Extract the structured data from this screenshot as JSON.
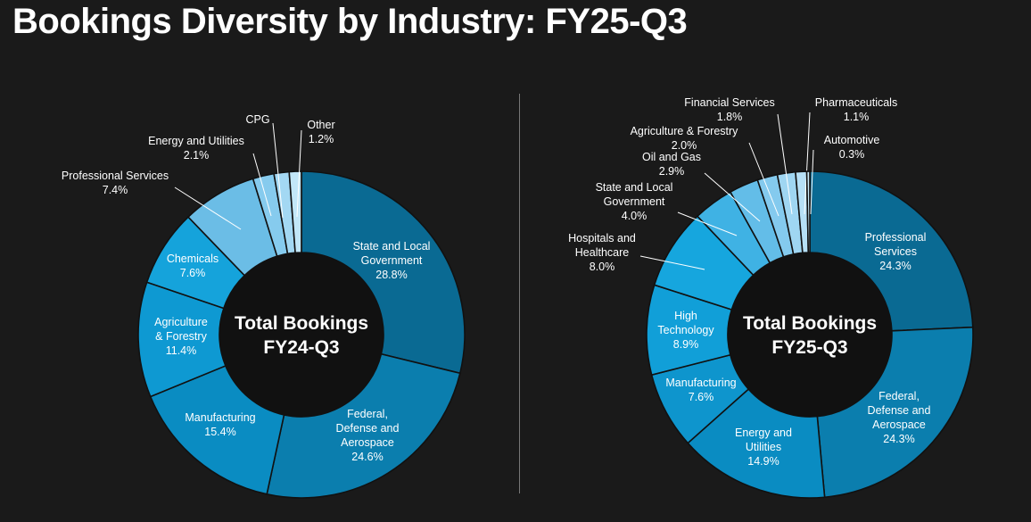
{
  "title": "Bookings Diversity by Industry: FY25-Q3",
  "colors": {
    "background": "#1a1a1a",
    "slice_palette": [
      "#0a6a93",
      "#0b7eae",
      "#0a8cc2",
      "#0e99d2",
      "#1aa6dd",
      "#3cb2e4",
      "#6bc0e8",
      "#8dd0f0",
      "#a9dcf4",
      "#c2e7f8"
    ],
    "text": "#ffffff"
  },
  "chart_data": [
    {
      "type": "pie",
      "center_label": [
        "Total Bookings",
        "FY24-Q3"
      ],
      "slices": [
        {
          "label": "State and Local Government",
          "value": 28.8,
          "display": "28.8%",
          "color": "#0a6a93"
        },
        {
          "label": "Federal, Defense and Aerospace",
          "value": 24.6,
          "display": "24.6%",
          "color": "#0b7eae"
        },
        {
          "label": "Manufacturing",
          "value": 15.4,
          "display": "15.4%",
          "color": "#0a8cc2"
        },
        {
          "label": "Agriculture & Forestry",
          "value": 11.4,
          "display": "11.4%",
          "color": "#0e99d2"
        },
        {
          "label": "Chemicals",
          "value": 7.6,
          "display": "7.6%",
          "color": "#15a3db"
        },
        {
          "label": "Professional Services",
          "value": 7.4,
          "display": "7.4%",
          "color": "#6bbde6"
        },
        {
          "label": "Energy and Utilities",
          "value": 2.1,
          "display": "2.1%",
          "color": "#86cbee"
        },
        {
          "label": "CPG",
          "value": 1.5,
          "display": "",
          "color": "#a3d8f3"
        },
        {
          "label": "Other",
          "value": 1.2,
          "display": "1.2%",
          "color": "#c2e7f8"
        }
      ]
    },
    {
      "type": "pie",
      "center_label": [
        "Total Bookings",
        "FY25-Q3"
      ],
      "slices": [
        {
          "label": "Professional Services",
          "value": 24.3,
          "display": "24.3%",
          "color": "#0a6a93"
        },
        {
          "label": "Federal, Defense and Aerospace",
          "value": 24.3,
          "display": "24.3%",
          "color": "#0b7eae"
        },
        {
          "label": "Energy and Utilities",
          "value": 14.9,
          "display": "14.9%",
          "color": "#0a8cc2"
        },
        {
          "label": "Manufacturing",
          "value": 7.6,
          "display": "7.6%",
          "color": "#0e95cd"
        },
        {
          "label": "High Technology",
          "value": 8.9,
          "display": "8.9%",
          "color": "#119fd8"
        },
        {
          "label": "Hospitals and Healthcare",
          "value": 8.0,
          "display": "8.0%",
          "color": "#16a6de"
        },
        {
          "label": "State and Local Government",
          "value": 4.0,
          "display": "4.0%",
          "color": "#3fb2e4"
        },
        {
          "label": "Oil and Gas",
          "value": 2.9,
          "display": "2.9%",
          "color": "#63bde8"
        },
        {
          "label": "Agriculture & Forestry",
          "value": 2.0,
          "display": "2.0%",
          "color": "#84caee"
        },
        {
          "label": "Financial Services",
          "value": 1.8,
          "display": "1.8%",
          "color": "#9fd6f2"
        },
        {
          "label": "Pharmaceuticals",
          "value": 1.1,
          "display": "1.1%",
          "color": "#b6e0f6"
        },
        {
          "label": "Automotive",
          "value": 0.3,
          "display": "0.3%",
          "color": "#cbebf9"
        }
      ]
    }
  ]
}
